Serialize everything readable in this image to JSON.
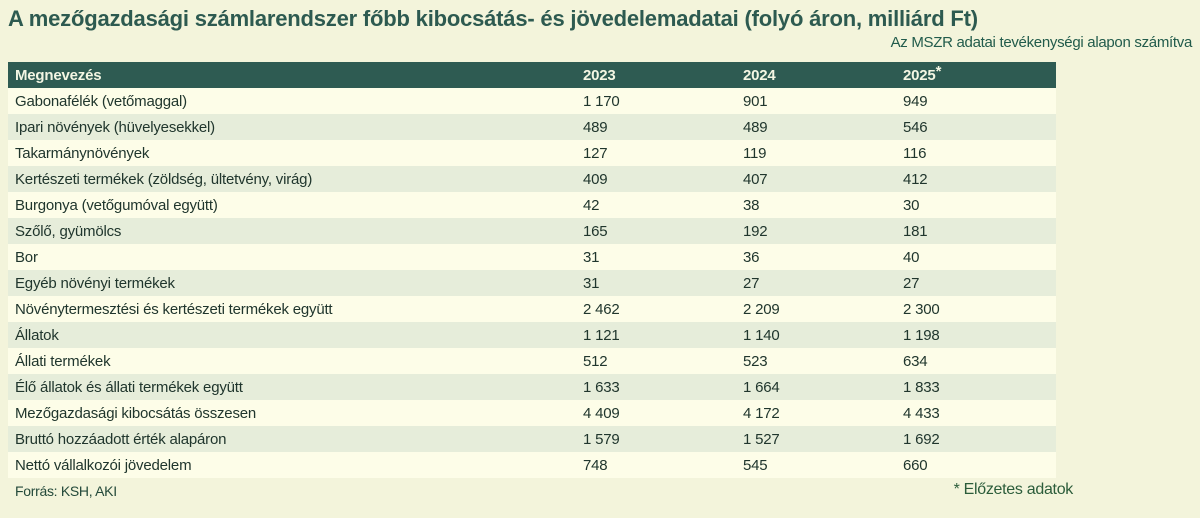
{
  "title": "A mezőgazdasági számlarendszer főbb kibocsátás- és jövedelemadatai (folyó áron, milliárd Ft)",
  "subtitle": "Az MSZR adatai tevékenységi alapon számítva",
  "table": {
    "header": {
      "name_col": "Megnevezés",
      "years": [
        "2023",
        "2024",
        "2025"
      ],
      "footnote_mark": "*"
    },
    "rows": [
      {
        "label": "Gabonafélék (vetőmaggal)",
        "values": [
          "1 170",
          "901",
          "949"
        ]
      },
      {
        "label": "Ipari növények (hüvelyesekkel)",
        "values": [
          "489",
          "489",
          "546"
        ]
      },
      {
        "label": "Takarmánynövények",
        "values": [
          "127",
          "119",
          "116"
        ]
      },
      {
        "label": "Kertészeti termékek (zöldség, ültetvény, virág)",
        "values": [
          "409",
          "407",
          "412"
        ]
      },
      {
        "label": "Burgonya (vetőgumóval együtt)",
        "values": [
          "42",
          "38",
          "30"
        ]
      },
      {
        "label": "Szőlő, gyümölcs",
        "values": [
          "165",
          "192",
          "181"
        ]
      },
      {
        "label": "Bor",
        "values": [
          "31",
          "36",
          "40"
        ]
      },
      {
        "label": "Egyéb növényi termékek",
        "values": [
          "31",
          "27",
          "27"
        ]
      },
      {
        "label": "Növénytermesztési és kertészeti termékek együtt",
        "values": [
          "2 462",
          "2 209",
          "2 300"
        ]
      },
      {
        "label": "Állatok",
        "values": [
          "1 121",
          "1 140",
          "1 198"
        ]
      },
      {
        "label": "Állati termékek",
        "values": [
          "512",
          "523",
          "634"
        ]
      },
      {
        "label": "Élő állatok és állati termékek együtt",
        "values": [
          "1 633",
          "1 664",
          "1 833"
        ]
      },
      {
        "label": "Mezőgazdasági kibocsátás összesen",
        "values": [
          "4 409",
          "4 172",
          "4 433"
        ]
      },
      {
        "label": "Bruttó hozzáadott érték alapáron",
        "values": [
          "1 579",
          "1 527",
          "1 692"
        ]
      },
      {
        "label": "Nettó vállalkozói jövedelem",
        "values": [
          "748",
          "545",
          "660"
        ]
      }
    ]
  },
  "footer": {
    "source": "Forrás: KSH, AKI",
    "note": "* Előzetes adatok"
  },
  "colors": {
    "page_background": "#f3f4db",
    "header_background": "#2e5b52",
    "header_text": "#f3f6e3",
    "row_odd": "#fdfde8",
    "row_even": "#e6edda",
    "row_text": "#20362d",
    "title_text": "#2d5a50",
    "note_text": "#2b5c3a"
  },
  "chart_data": {
    "type": "table",
    "title": "A mezőgazdasági számlarendszer főbb kibocsátás- és jövedelemadatai (folyó áron, milliárd Ft)",
    "subtitle": "Az MSZR adatai tevékenységi alapon számítva",
    "columns": [
      "Megnevezés",
      "2023",
      "2024",
      "2025*"
    ],
    "categories": [
      "Gabonafélék (vetőmaggal)",
      "Ipari növények (hüvelyesekkel)",
      "Takarmánynövények",
      "Kertészeti termékek (zöldség, ültetvény, virág)",
      "Burgonya (vetőgumóval együtt)",
      "Szőlő, gyümölcs",
      "Bor",
      "Egyéb növényi termékek",
      "Növénytermesztési és kertészeti termékek együtt",
      "Állatok",
      "Állati termékek",
      "Élő állatok és állati termékek együtt",
      "Mezőgazdasági kibocsátás összesen",
      "Bruttó hozzáadott érték alapáron",
      "Nettó vállalkozói jövedelem"
    ],
    "series": [
      {
        "name": "2023",
        "values": [
          1170,
          489,
          127,
          409,
          42,
          165,
          31,
          31,
          2462,
          1121,
          512,
          1633,
          4409,
          1579,
          748
        ]
      },
      {
        "name": "2024",
        "values": [
          901,
          489,
          119,
          407,
          38,
          192,
          36,
          27,
          2209,
          1140,
          523,
          1664,
          4172,
          1527,
          545
        ]
      },
      {
        "name": "2025*",
        "values": [
          949,
          546,
          116,
          412,
          30,
          181,
          40,
          27,
          2300,
          1198,
          634,
          1833,
          4433,
          1692,
          660
        ]
      }
    ],
    "annotations": [
      "* Előzetes adatok",
      "Forrás: KSH, AKI"
    ]
  }
}
